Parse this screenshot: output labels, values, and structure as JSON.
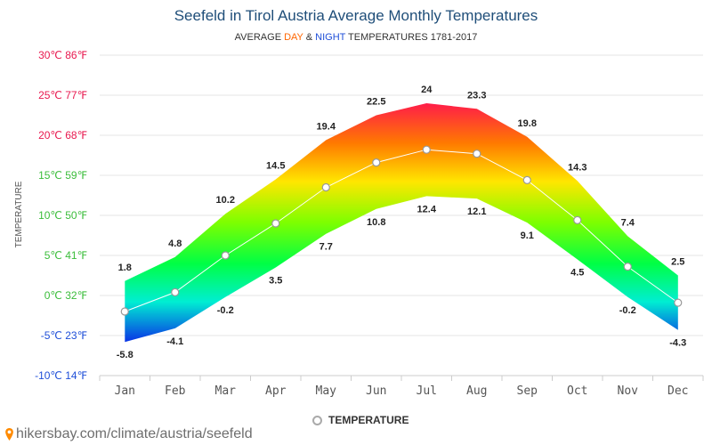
{
  "header": {
    "title": "Seefeld in Tirol Austria Average Monthly Temperatures",
    "subtitle_prefix": "AVERAGE ",
    "subtitle_day": "DAY",
    "subtitle_amp": " & ",
    "subtitle_night": "NIGHT",
    "subtitle_suffix": " TEMPERATURES 1781-2017"
  },
  "legend": {
    "label": "TEMPERATURE"
  },
  "footer": {
    "site": "hikersbay.com/climate/austria/seefeld"
  },
  "colors": {
    "title": "#1f4e79",
    "day_accent": "#ff6600",
    "night_accent": "#1f4fd8",
    "grid": "#e6e6e6",
    "tick_hot": "#e8194f",
    "tick_mild": "#3bbd3b",
    "tick_cold": "#1f4fd8"
  },
  "chart_data": {
    "type": "area",
    "title": "Seefeld in Tirol Austria Average Monthly Temperatures",
    "ylabel": "TEMPERATURE",
    "xlabel": "",
    "ylim": [
      -10,
      30
    ],
    "grid": true,
    "legend_position": "bottom",
    "categories": [
      "Jan",
      "Feb",
      "Mar",
      "Apr",
      "May",
      "Jun",
      "Jul",
      "Aug",
      "Sep",
      "Oct",
      "Nov",
      "Dec"
    ],
    "y_ticks": [
      {
        "value": 30,
        "label": "30℃ 86℉"
      },
      {
        "value": 25,
        "label": "25℃ 77℉"
      },
      {
        "value": 20,
        "label": "20℃ 68℉"
      },
      {
        "value": 15,
        "label": "15℃ 59℉"
      },
      {
        "value": 10,
        "label": "10℃ 50℉"
      },
      {
        "value": 5,
        "label": "5℃ 41℉"
      },
      {
        "value": 0,
        "label": "0℃ 32℉"
      },
      {
        "value": -5,
        "label": "-5℃ 23℉"
      },
      {
        "value": -10,
        "label": "-10℃ 14℉"
      }
    ],
    "day_labels": [
      "1.8",
      "4.8",
      "10.2",
      "14.5",
      "19.4",
      "22.5",
      "24",
      "23.3",
      "19.8",
      "14.3",
      "7.4",
      "2.5"
    ],
    "night_labels": [
      "-5.8",
      "-4.1",
      "-0.2",
      "3.5",
      "7.7",
      "10.8",
      "12.4",
      "12.1",
      "9.1",
      "4.5",
      "-0.2",
      "-4.3"
    ],
    "series": [
      {
        "name": "DAY",
        "values": [
          1.8,
          4.8,
          10.2,
          14.5,
          19.4,
          22.5,
          24,
          23.3,
          19.8,
          14.3,
          7.4,
          2.5
        ]
      },
      {
        "name": "NIGHT",
        "values": [
          -5.8,
          -4.1,
          -0.2,
          3.5,
          7.7,
          10.8,
          12.4,
          12.1,
          9.1,
          4.5,
          -0.2,
          -4.3
        ]
      },
      {
        "name": "TEMPERATURE",
        "values": [
          -2,
          0.4,
          5.0,
          9.0,
          13.5,
          16.6,
          18.2,
          17.7,
          14.4,
          9.4,
          3.6,
          -0.9
        ]
      }
    ]
  }
}
